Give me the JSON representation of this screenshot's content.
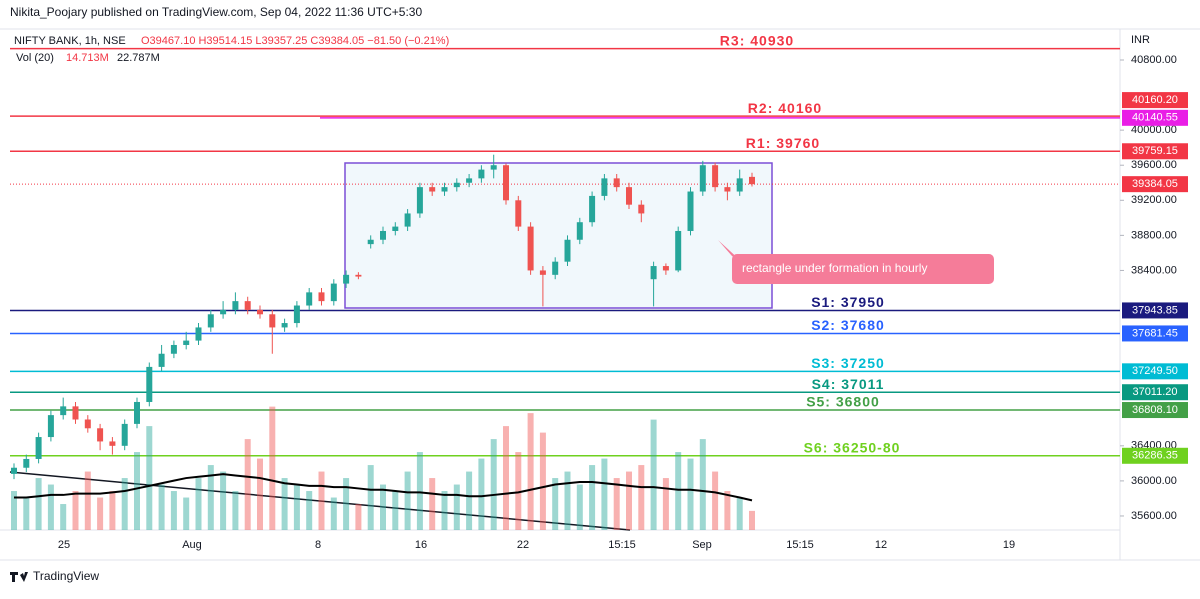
{
  "header": {
    "published": "Nikita_Poojary published on TradingView.com, Sep 04, 2022 11:36 UTC+5:30",
    "symbol": "NIFTY BANK, 1h, NSE",
    "ohlc": "O39467.10 H39514.15 L39357.25 C39384.05 −81.50 (−0.21%)",
    "vol_name": "Vol (20)",
    "vol_value": "14.713M",
    "vol_ma": "22.787M",
    "currency": "INR"
  },
  "footer": {
    "brand": "TradingView"
  },
  "chart_data": {
    "type": "candlestick",
    "up_color": "#26a69a",
    "down_color": "#ef5350",
    "ylim": [
      35440,
      41142
    ],
    "yticks": [
      {
        "value": 35600,
        "label": "35600.00"
      },
      {
        "value": 36000,
        "label": "36000.00"
      },
      {
        "value": 36400,
        "label": "36400.00"
      },
      {
        "value": 38400,
        "label": "38400.00"
      },
      {
        "value": 38800,
        "label": "38800.00"
      },
      {
        "value": 39200,
        "label": "39200.00"
      },
      {
        "value": 39600,
        "label": "39600.00"
      },
      {
        "value": 40000,
        "label": "40000.00"
      },
      {
        "value": 40800,
        "label": "40800.00"
      }
    ],
    "x_labels": [
      "25",
      "Aug",
      "8",
      "16",
      "22",
      "15:15",
      "Sep",
      "15:15",
      "12",
      "19"
    ],
    "candles": [
      [
        36080,
        36200,
        36020,
        36150
      ],
      [
        36150,
        36300,
        36100,
        36250
      ],
      [
        36250,
        36550,
        36200,
        36500
      ],
      [
        36500,
        36800,
        36450,
        36750
      ],
      [
        36750,
        36950,
        36700,
        36850
      ],
      [
        36850,
        36900,
        36650,
        36700
      ],
      [
        36700,
        36750,
        36550,
        36600
      ],
      [
        36600,
        36650,
        36350,
        36450
      ],
      [
        36450,
        36500,
        36300,
        36400
      ],
      [
        36400,
        36700,
        36350,
        36650
      ],
      [
        36650,
        36950,
        36600,
        36900
      ],
      [
        36900,
        37350,
        36850,
        37300
      ],
      [
        37300,
        37550,
        37250,
        37450
      ],
      [
        37450,
        37600,
        37400,
        37550
      ],
      [
        37550,
        37700,
        37500,
        37600
      ],
      [
        37600,
        37800,
        37550,
        37750
      ],
      [
        37750,
        37950,
        37700,
        37900
      ],
      [
        37900,
        38050,
        37850,
        37950
      ],
      [
        37950,
        38150,
        37900,
        38050
      ],
      [
        38050,
        38100,
        37900,
        37950
      ],
      [
        37950,
        38000,
        37850,
        37900
      ],
      [
        37900,
        37950,
        37450,
        37750
      ],
      [
        37750,
        37850,
        37700,
        37800
      ],
      [
        37800,
        38050,
        37750,
        38000
      ],
      [
        38000,
        38200,
        37950,
        38150
      ],
      [
        38150,
        38200,
        38000,
        38050
      ],
      [
        38050,
        38300,
        38000,
        38250
      ],
      [
        38250,
        38400,
        38200,
        38350
      ],
      [
        38350,
        38380,
        38300,
        38330
      ],
      [
        38700,
        38800,
        38650,
        38750
      ],
      [
        38750,
        38900,
        38700,
        38850
      ],
      [
        38850,
        38950,
        38800,
        38900
      ],
      [
        38900,
        39100,
        38850,
        39050
      ],
      [
        39050,
        39400,
        39000,
        39350
      ],
      [
        39350,
        39400,
        39250,
        39300
      ],
      [
        39300,
        39400,
        39250,
        39350
      ],
      [
        39350,
        39450,
        39300,
        39400
      ],
      [
        39400,
        39500,
        39350,
        39450
      ],
      [
        39450,
        39600,
        39400,
        39550
      ],
      [
        39550,
        39720,
        39450,
        39600
      ],
      [
        39600,
        39620,
        39150,
        39200
      ],
      [
        39200,
        39250,
        38850,
        38900
      ],
      [
        38900,
        38950,
        38350,
        38400
      ],
      [
        38400,
        38450,
        37990,
        38350
      ],
      [
        38350,
        38550,
        38300,
        38500
      ],
      [
        38500,
        38800,
        38450,
        38750
      ],
      [
        38750,
        39000,
        38700,
        38950
      ],
      [
        38950,
        39300,
        38900,
        39250
      ],
      [
        39250,
        39500,
        39200,
        39450
      ],
      [
        39450,
        39500,
        39300,
        39350
      ],
      [
        39350,
        39400,
        39100,
        39150
      ],
      [
        39150,
        39200,
        38950,
        39050
      ],
      [
        38300,
        38500,
        37990,
        38450
      ],
      [
        38450,
        38480,
        38350,
        38400
      ],
      [
        38400,
        38900,
        38380,
        38850
      ],
      [
        38850,
        39350,
        38800,
        39300
      ],
      [
        39300,
        39650,
        39250,
        39600
      ],
      [
        39600,
        39630,
        39300,
        39350
      ],
      [
        39350,
        39400,
        39200,
        39300
      ],
      [
        39300,
        39550,
        39250,
        39450
      ],
      [
        39467.1,
        39514.15,
        39357.25,
        39384.05
      ]
    ],
    "vol_lim": [
      0,
      385
    ],
    "volumes": [
      30,
      25,
      40,
      35,
      20,
      30,
      45,
      25,
      30,
      40,
      60,
      80,
      35,
      30,
      25,
      40,
      50,
      45,
      30,
      70,
      55,
      95,
      40,
      35,
      30,
      45,
      25,
      40,
      20,
      50,
      35,
      30,
      45,
      60,
      40,
      30,
      35,
      45,
      55,
      70,
      80,
      60,
      90,
      75,
      40,
      45,
      35,
      50,
      55,
      40,
      45,
      50,
      85,
      40,
      60,
      55,
      70,
      45,
      30,
      25,
      14.713
    ],
    "vol_ma_color": "#000000",
    "vol_ma": [
      25,
      25,
      26,
      27,
      27,
      28,
      28,
      28,
      29,
      30,
      32,
      34,
      36,
      38,
      40,
      41,
      42,
      43,
      42,
      41,
      40,
      38,
      36,
      35,
      34,
      34,
      33,
      33,
      32,
      31,
      31,
      30,
      29,
      29,
      28,
      27,
      27,
      26,
      26,
      27,
      28,
      29,
      31,
      33,
      35,
      36,
      37,
      37,
      36,
      35,
      34,
      33,
      33,
      32,
      31,
      31,
      30,
      29,
      27,
      25,
      22.787
    ],
    "levels": [
      {
        "label": "R3: 40930",
        "price": 40930,
        "color": "#f23645"
      },
      {
        "price": {
          "value": 40140.55,
          "label": "40140.55"
        },
        "color": "#e91ee6"
      },
      {
        "label": "R2: 40160",
        "price": {
          "value": 40160.2,
          "label": "40160.20"
        },
        "color": "#f23645"
      },
      {
        "label": "R1: 39760",
        "price": {
          "value": 39759.15,
          "label": "39759.15"
        },
        "color": "#f23645"
      },
      {
        "price": {
          "value": 39384.05,
          "label": "39384.05"
        },
        "color": "#f23645",
        "style": "dotted"
      },
      {
        "label": "S1: 37950",
        "price": {
          "value": 37943.85,
          "label": "37943.85"
        },
        "color": "#1a1a7e"
      },
      {
        "label": "S2: 37680",
        "price": {
          "value": 37681.45,
          "label": "37681.45"
        },
        "color": "#2962ff"
      },
      {
        "label": "S3: 37250",
        "price": {
          "value": 37249.5,
          "label": "37249.50"
        },
        "color": "#00bcd4"
      },
      {
        "label": "S4: 37011",
        "price": {
          "value": 37011.2,
          "label": "37011.20"
        },
        "color": "#089981"
      },
      {
        "label": "S5: 36800",
        "price": {
          "value": 36808.1,
          "label": "36808.10"
        },
        "color": "#43a047"
      },
      {
        "label": "S6: 36250-80",
        "price": {
          "value": 36286.35,
          "label": "36286.35"
        },
        "color": "#6fd11f"
      }
    ],
    "annotation": "rectangle under formation in hourly"
  }
}
